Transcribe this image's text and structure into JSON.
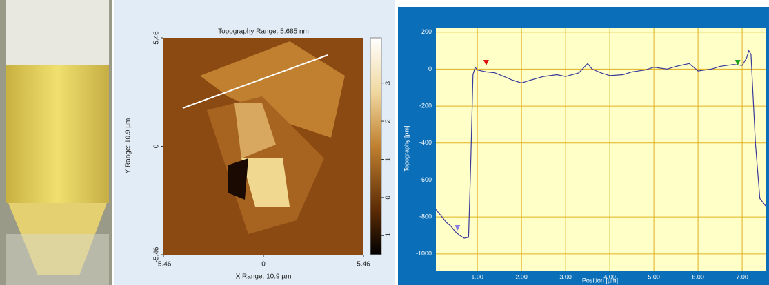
{
  "chart_data": [
    {
      "type": "image",
      "title": "Topography Range:  5.685 nm",
      "xlabel": "X Range:  10.9 µm",
      "ylabel": "Y Range:  10.9 µm",
      "xlim": [
        -5.46,
        5.46
      ],
      "xticks": [
        -5.46,
        0,
        5.46
      ],
      "ylim": [
        -5.46,
        5.46
      ],
      "yticks": [
        -5.46,
        0,
        5.46
      ],
      "colorbar_lim": [
        -1.5,
        4.185
      ],
      "colorbar_ticks": [
        -1,
        0,
        1,
        2,
        3
      ]
    },
    {
      "type": "line",
      "xlabel": "Position [µm]",
      "ylabel": "Topography [pm]",
      "color": "#3a3a9a",
      "x": [
        0.06,
        0.2,
        0.3,
        0.4,
        0.5,
        0.6,
        0.7,
        0.8,
        0.85,
        0.9,
        0.95,
        1.0,
        1.1,
        1.2,
        1.4,
        1.6,
        1.8,
        2.0,
        2.2,
        2.5,
        2.8,
        3.0,
        3.3,
        3.5,
        3.6,
        3.8,
        4.0,
        4.3,
        4.5,
        4.8,
        5.0,
        5.3,
        5.5,
        5.8,
        6.0,
        6.3,
        6.5,
        6.8,
        7.0,
        7.1,
        7.15,
        7.2,
        7.3,
        7.4,
        7.53
      ],
      "y": [
        -760,
        -800,
        -830,
        -850,
        -880,
        -900,
        -915,
        -910,
        -500,
        -30,
        10,
        -5,
        -10,
        -15,
        -20,
        -40,
        -60,
        -75,
        -60,
        -40,
        -30,
        -40,
        -20,
        30,
        0,
        -20,
        -35,
        -30,
        -15,
        -5,
        10,
        0,
        15,
        30,
        -10,
        0,
        15,
        25,
        20,
        60,
        100,
        80,
        -400,
        -700,
        -740
      ],
      "xlim": [
        0.06,
        7.53
      ],
      "ylim": [
        -1090,
        225
      ],
      "xticks": [
        {
          "value": 1,
          "label": "1.00"
        },
        {
          "value": 2,
          "label": "2.00"
        },
        {
          "value": 3,
          "label": "3.00"
        },
        {
          "value": 4,
          "label": "4.00"
        },
        {
          "value": 5,
          "label": "5.00"
        },
        {
          "value": 6,
          "label": "6.00"
        },
        {
          "value": 7,
          "label": "7.00"
        }
      ],
      "yticks": [
        200,
        0,
        -200,
        -400,
        -600,
        -800,
        -1000
      ],
      "grid": true,
      "cursors": [
        {
          "x": 0.55,
          "color": "#8a7fe0"
        },
        {
          "x": 1.2,
          "color": "#e01010"
        },
        {
          "x": 6.9,
          "color": "#20a020"
        }
      ]
    }
  ]
}
